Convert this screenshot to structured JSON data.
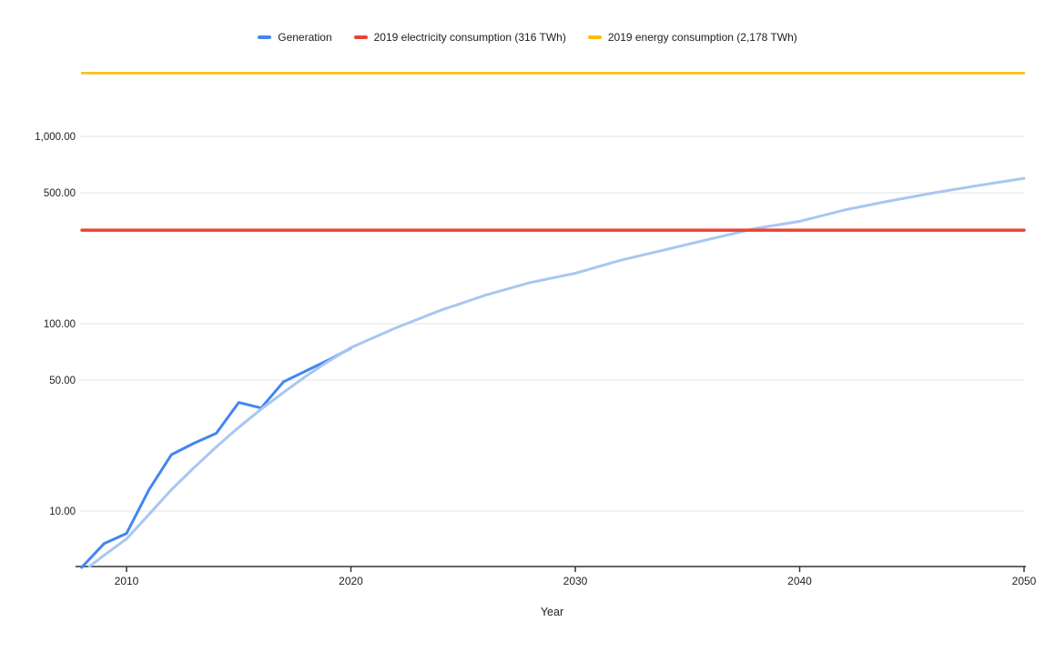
{
  "legend": {
    "items": [
      {
        "label": "Generation",
        "color": "#4285f4"
      },
      {
        "label": "2019 electricity consumption (316 TWh)",
        "color": "#ea4335"
      },
      {
        "label": "2019 energy consumption (2,178 TWh)",
        "color": "#fbbc04"
      }
    ]
  },
  "x_axis": {
    "title": "Year",
    "tick_labels": [
      "2010",
      "2020",
      "2030",
      "2040",
      "2050"
    ],
    "tick_values": [
      2010,
      2020,
      2030,
      2040,
      2050
    ]
  },
  "y_axis": {
    "ticks": [
      {
        "value": 1000,
        "label": "1,000.00"
      },
      {
        "value": 500,
        "label": "500.00"
      },
      {
        "value": 100,
        "label": "100.00"
      },
      {
        "value": 50,
        "label": "50.00"
      },
      {
        "value": 10,
        "label": "10.00"
      }
    ]
  },
  "chart_data": {
    "type": "line",
    "y_scale": "log",
    "x_range": [
      2007.9,
      2050
    ],
    "y_range_approx": [
      5,
      2300
    ],
    "grid": true,
    "legend_position": "top",
    "xlabel": "Year",
    "series": [
      {
        "name": "Generation",
        "color": "#4285f4",
        "width": 3,
        "points": [
          [
            2008,
            5.0
          ],
          [
            2009,
            6.7
          ],
          [
            2010,
            7.6
          ],
          [
            2011,
            13.0
          ],
          [
            2012,
            20.0
          ],
          [
            2013,
            23.0
          ],
          [
            2014,
            26.0
          ],
          [
            2015,
            38.0
          ],
          [
            2016,
            35.5
          ],
          [
            2017,
            49.0
          ],
          [
            2018,
            56.0
          ],
          [
            2019,
            64.0
          ],
          [
            2020,
            74.0
          ]
        ]
      },
      {
        "name": "Generation trendline",
        "color": "#a8c7f0",
        "width": 3,
        "points": [
          [
            2008.35,
            5.06
          ],
          [
            2009,
            5.8
          ],
          [
            2010,
            7.1
          ],
          [
            2011,
            9.6
          ],
          [
            2012,
            13.0
          ],
          [
            2013,
            17.0
          ],
          [
            2014,
            22.0
          ],
          [
            2015,
            28.0
          ],
          [
            2016,
            35.0
          ],
          [
            2017,
            43.0
          ],
          [
            2018,
            52.5
          ],
          [
            2019,
            63.0
          ],
          [
            2020,
            74.5
          ],
          [
            2022,
            95.0
          ],
          [
            2024,
            118.0
          ],
          [
            2026,
            142.0
          ],
          [
            2028,
            166.0
          ],
          [
            2030,
            186.0
          ],
          [
            2032,
            218.0
          ],
          [
            2034,
            248.0
          ],
          [
            2036,
            283.0
          ],
          [
            2038,
            322.0
          ],
          [
            2040,
            352.0
          ],
          [
            2042,
            405.0
          ],
          [
            2044,
            452.0
          ],
          [
            2046,
            500.0
          ],
          [
            2048,
            548.0
          ],
          [
            2050,
            597.0
          ]
        ]
      },
      {
        "name": "2019 electricity consumption",
        "color": "#ea4335",
        "width": 3.5,
        "constant": 316
      },
      {
        "name": "2019 energy consumption",
        "color": "#fbbc04",
        "width": 2.5,
        "constant": 2178
      }
    ]
  }
}
